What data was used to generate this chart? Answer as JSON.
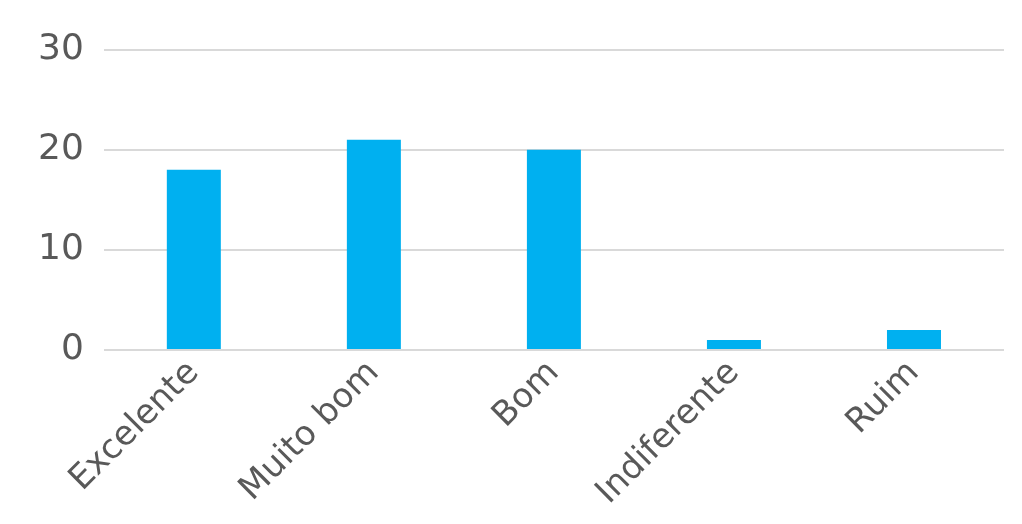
{
  "chart_data": {
    "type": "bar",
    "categories": [
      "Excelente",
      "Muito bom",
      "Bom",
      "Indiferente",
      "Ruim"
    ],
    "values": [
      18,
      21,
      20,
      1,
      2
    ],
    "color": "#00b0f0",
    "ylim": [
      0,
      30
    ],
    "yticks": [
      0,
      10,
      20,
      30
    ],
    "grid": "y"
  }
}
